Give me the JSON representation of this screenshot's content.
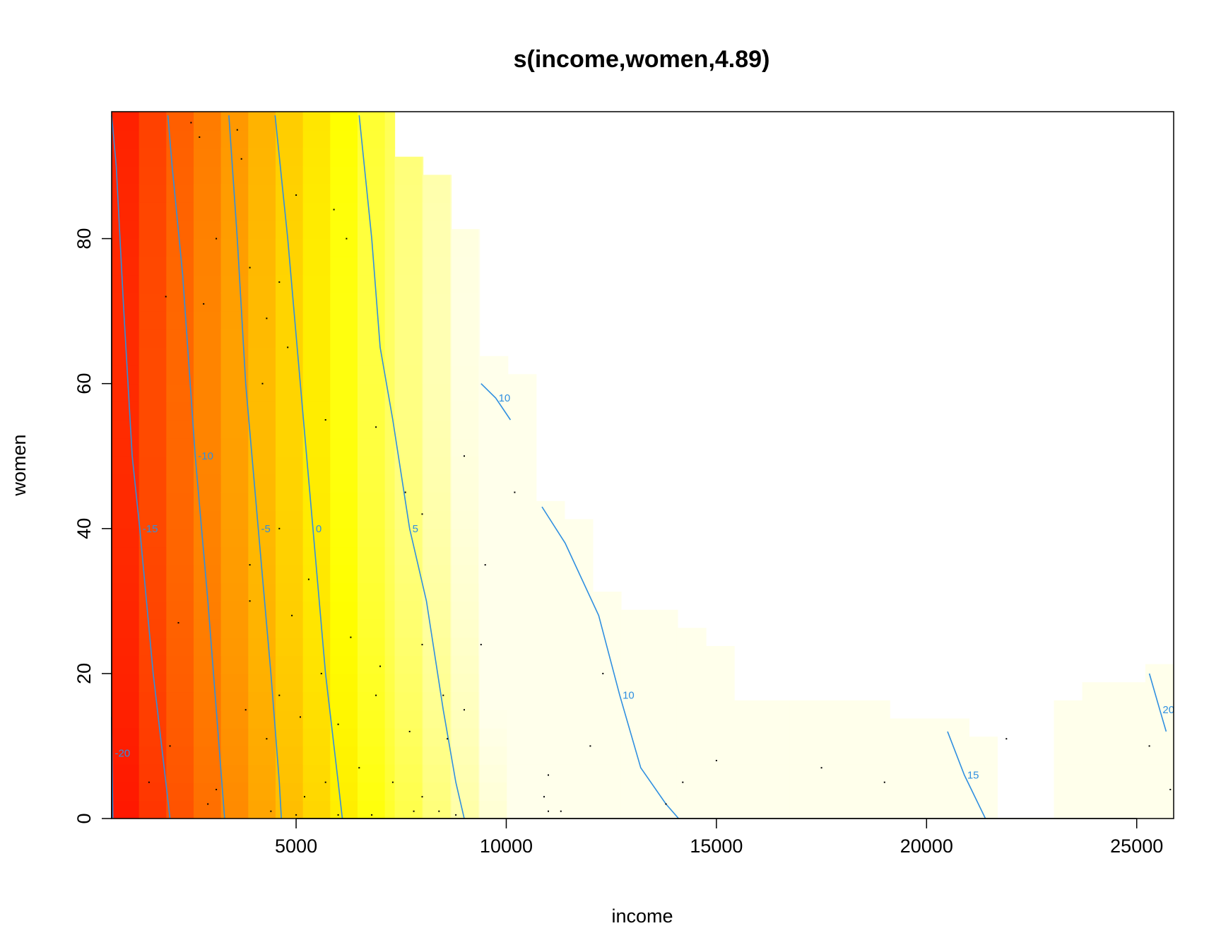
{
  "chart_data": {
    "type": "heatmap",
    "title": "s(income,women,4.89)",
    "xlabel": "income",
    "ylabel": "women",
    "xlim": [
      611,
      25879
    ],
    "ylim": [
      0,
      97.51
    ],
    "x_ticks": [
      5000,
      10000,
      15000,
      20000,
      25000
    ],
    "y_ticks": [
      0,
      20,
      40,
      60,
      80
    ],
    "x_tick_labels": [
      "5000",
      "10000",
      "15000",
      "20000",
      "25000"
    ],
    "y_tick_labels": [
      "0",
      "20",
      "40",
      "60",
      "80"
    ],
    "grid": false,
    "legend": "none",
    "color_scale": "heat (red low → yellow → pale high)",
    "surface": {
      "description": "fitted smooth s(income,women), increases with income, slightly decreases with women",
      "x_bin_width": 650,
      "y_bin_width": 2.5,
      "approx_values": [
        {
          "income": 611,
          "women": 0,
          "value": -24
        },
        {
          "income": 611,
          "women": 97,
          "value": -16
        },
        {
          "income": 5000,
          "women": 0,
          "value": -5
        },
        {
          "income": 5000,
          "women": 60,
          "value": 0
        },
        {
          "income": 10000,
          "women": 0,
          "value": 7
        },
        {
          "income": 10000,
          "women": 60,
          "value": 10
        },
        {
          "income": 15000,
          "women": 0,
          "value": 11
        },
        {
          "income": 20000,
          "women": 10,
          "value": 14
        },
        {
          "income": 25879,
          "women": 15,
          "value": 21
        }
      ],
      "coverage_upper_women_by_income": [
        {
          "from": 611,
          "to": 7345,
          "max_women": 97.51
        },
        {
          "from": 7345,
          "to": 8018,
          "max_women": 91.3
        },
        {
          "from": 8018,
          "to": 8691,
          "max_women": 88.8
        },
        {
          "from": 8691,
          "to": 9364,
          "max_women": 81.3
        },
        {
          "from": 9364,
          "to": 10038,
          "max_women": 63.8
        },
        {
          "from": 10038,
          "to": 10711,
          "max_women": 61.3
        },
        {
          "from": 10711,
          "to": 11384,
          "max_women": 43.8
        },
        {
          "from": 11384,
          "to": 12058,
          "max_women": 41.3
        },
        {
          "from": 12058,
          "to": 12731,
          "max_women": 31.3
        },
        {
          "from": 12731,
          "to": 13404,
          "max_women": 28.8
        },
        {
          "from": 13404,
          "to": 14077,
          "max_women": 28.8
        },
        {
          "from": 14077,
          "to": 14751,
          "max_women": 26.3
        },
        {
          "from": 14751,
          "to": 15424,
          "max_women": 23.8
        },
        {
          "from": 15424,
          "to": 16097,
          "max_women": 16.3
        },
        {
          "from": 16097,
          "to": 19124,
          "max_women": 16.3
        },
        {
          "from": 19124,
          "to": 21010,
          "max_women": 13.8
        },
        {
          "from": 21010,
          "to": 21683,
          "max_women": 11.3
        },
        {
          "from": 23030,
          "to": 23704,
          "max_women": 16.3
        },
        {
          "from": 23704,
          "to": 25205,
          "max_women": 18.8
        },
        {
          "from": 25205,
          "to": 25879,
          "max_women": 21.3
        }
      ]
    },
    "contours": [
      {
        "level": -20,
        "label": "-20",
        "points": [
          [
            640,
            0
          ],
          [
            620,
            9
          ],
          [
            611,
            14
          ]
        ]
      },
      {
        "level": -15,
        "label": "-15",
        "points": [
          [
            611,
            97
          ],
          [
            720,
            90
          ],
          [
            900,
            70
          ],
          [
            1100,
            50
          ],
          [
            1280,
            40
          ],
          [
            1600,
            20
          ],
          [
            1900,
            5
          ],
          [
            2000,
            0
          ]
        ]
      },
      {
        "level": -10,
        "label": "-10",
        "points": [
          [
            1950,
            97
          ],
          [
            2050,
            90
          ],
          [
            2300,
            75
          ],
          [
            2600,
            50
          ],
          [
            2900,
            30
          ],
          [
            3100,
            15
          ],
          [
            3300,
            0
          ]
        ]
      },
      {
        "level": -5,
        "label": "-5",
        "points": [
          [
            3400,
            97
          ],
          [
            3600,
            80
          ],
          [
            3800,
            60
          ],
          [
            4100,
            40
          ],
          [
            4400,
            20
          ],
          [
            4600,
            5
          ],
          [
            4650,
            0
          ]
        ]
      },
      {
        "level": 0,
        "label": "0",
        "points": [
          [
            4500,
            97
          ],
          [
            4800,
            80
          ],
          [
            5100,
            60
          ],
          [
            5400,
            40
          ],
          [
            5700,
            20
          ],
          [
            6000,
            5
          ],
          [
            6100,
            0
          ]
        ]
      },
      {
        "level": 5,
        "label": "5",
        "points": [
          [
            6500,
            97
          ],
          [
            6800,
            80
          ],
          [
            7000,
            65
          ],
          [
            7300,
            55
          ],
          [
            7700,
            40
          ],
          [
            8100,
            30
          ],
          [
            8500,
            15
          ],
          [
            8800,
            5
          ],
          [
            9000,
            0
          ]
        ]
      },
      {
        "level": 10,
        "label": "10",
        "points": [
          [
            9400,
            60
          ],
          [
            9750,
            58
          ],
          [
            10100,
            55
          ]
        ]
      },
      {
        "level": 10,
        "label": "10",
        "points": [
          [
            10850,
            43
          ],
          [
            11400,
            38
          ],
          [
            12200,
            28
          ],
          [
            12700,
            17
          ],
          [
            13200,
            7
          ],
          [
            13800,
            2
          ],
          [
            14100,
            0
          ]
        ]
      },
      {
        "level": 15,
        "label": "15",
        "points": [
          [
            20500,
            12
          ],
          [
            20900,
            6
          ],
          [
            21400,
            0
          ]
        ]
      },
      {
        "level": 20,
        "label": "20",
        "points": [
          [
            25300,
            20
          ],
          [
            25550,
            15
          ],
          [
            25700,
            12
          ]
        ]
      }
    ],
    "observations": [
      [
        2500,
        96
      ],
      [
        3600,
        95
      ],
      [
        2700,
        94
      ],
      [
        3700,
        91
      ],
      [
        2800,
        71
      ],
      [
        3100,
        80
      ],
      [
        3900,
        76
      ],
      [
        4600,
        74
      ],
      [
        4300,
        69
      ],
      [
        6200,
        80
      ],
      [
        5000,
        86
      ],
      [
        5900,
        84
      ],
      [
        1900,
        72
      ],
      [
        4800,
        65
      ],
      [
        4200,
        60
      ],
      [
        5700,
        55
      ],
      [
        6900,
        54
      ],
      [
        7600,
        45
      ],
      [
        8000,
        42
      ],
      [
        4600,
        40
      ],
      [
        3900,
        35
      ],
      [
        5300,
        33
      ],
      [
        9500,
        35
      ],
      [
        3900,
        30
      ],
      [
        4900,
        28
      ],
      [
        2200,
        27
      ],
      [
        6300,
        25
      ],
      [
        8000,
        24
      ],
      [
        9400,
        24
      ],
      [
        7000,
        21
      ],
      [
        5600,
        20
      ],
      [
        8500,
        17
      ],
      [
        4600,
        17
      ],
      [
        6900,
        17
      ],
      [
        3800,
        15
      ],
      [
        9000,
        15
      ],
      [
        5100,
        14
      ],
      [
        6000,
        13
      ],
      [
        7700,
        12
      ],
      [
        8600,
        11
      ],
      [
        4300,
        11
      ],
      [
        6500,
        7
      ],
      [
        5700,
        5
      ],
      [
        7300,
        5
      ],
      [
        3100,
        4
      ],
      [
        5200,
        3
      ],
      [
        8000,
        3
      ],
      [
        2900,
        2
      ],
      [
        4400,
        1
      ],
      [
        6800,
        0.5
      ],
      [
        7800,
        1
      ],
      [
        8400,
        1
      ],
      [
        11000,
        1
      ],
      [
        11300,
        1
      ],
      [
        12000,
        10
      ],
      [
        12300,
        20
      ],
      [
        13800,
        2
      ],
      [
        14200,
        5
      ],
      [
        15000,
        8
      ],
      [
        19000,
        5
      ],
      [
        17500,
        7
      ],
      [
        21900,
        11
      ],
      [
        25300,
        10
      ],
      [
        25800,
        4
      ],
      [
        11000,
        6
      ],
      [
        10900,
        3
      ],
      [
        8800,
        0.5
      ],
      [
        6000,
        0.5
      ],
      [
        5000,
        0.5
      ],
      [
        9000,
        50
      ],
      [
        10200,
        45
      ],
      [
        2000,
        10
      ],
      [
        1500,
        5
      ]
    ]
  }
}
